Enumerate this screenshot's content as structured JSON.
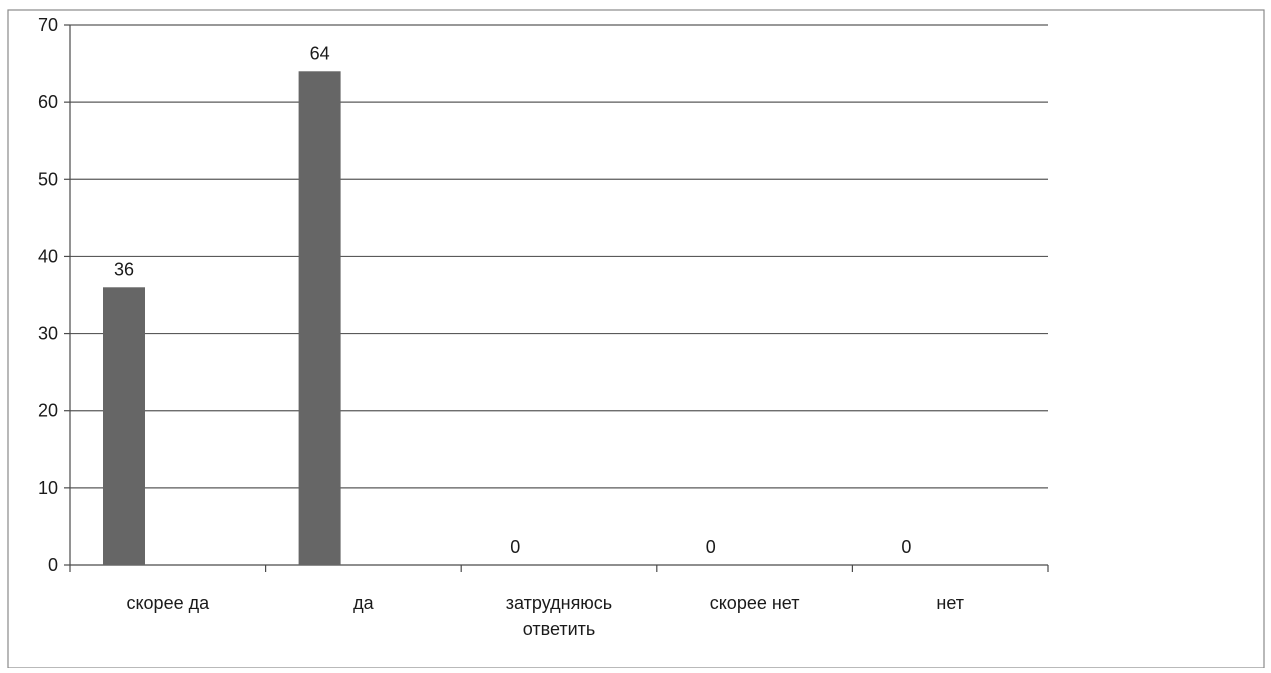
{
  "chart_data": {
    "type": "bar",
    "categories": [
      [
        "скорее да"
      ],
      [
        "да"
      ],
      [
        "затрудняюсь",
        "ответить"
      ],
      [
        "скорее нет"
      ],
      [
        "нет"
      ]
    ],
    "values": [
      36,
      64,
      0,
      0,
      0
    ],
    "data_labels": [
      "36",
      "64",
      "0",
      "0",
      "0"
    ],
    "ylim": [
      0,
      70
    ],
    "yticks": [
      0,
      10,
      20,
      30,
      40,
      50,
      60,
      70
    ],
    "title": "",
    "xlabel": "",
    "ylabel": "",
    "grid": true,
    "legend": "none",
    "bar_color": "#666666"
  }
}
